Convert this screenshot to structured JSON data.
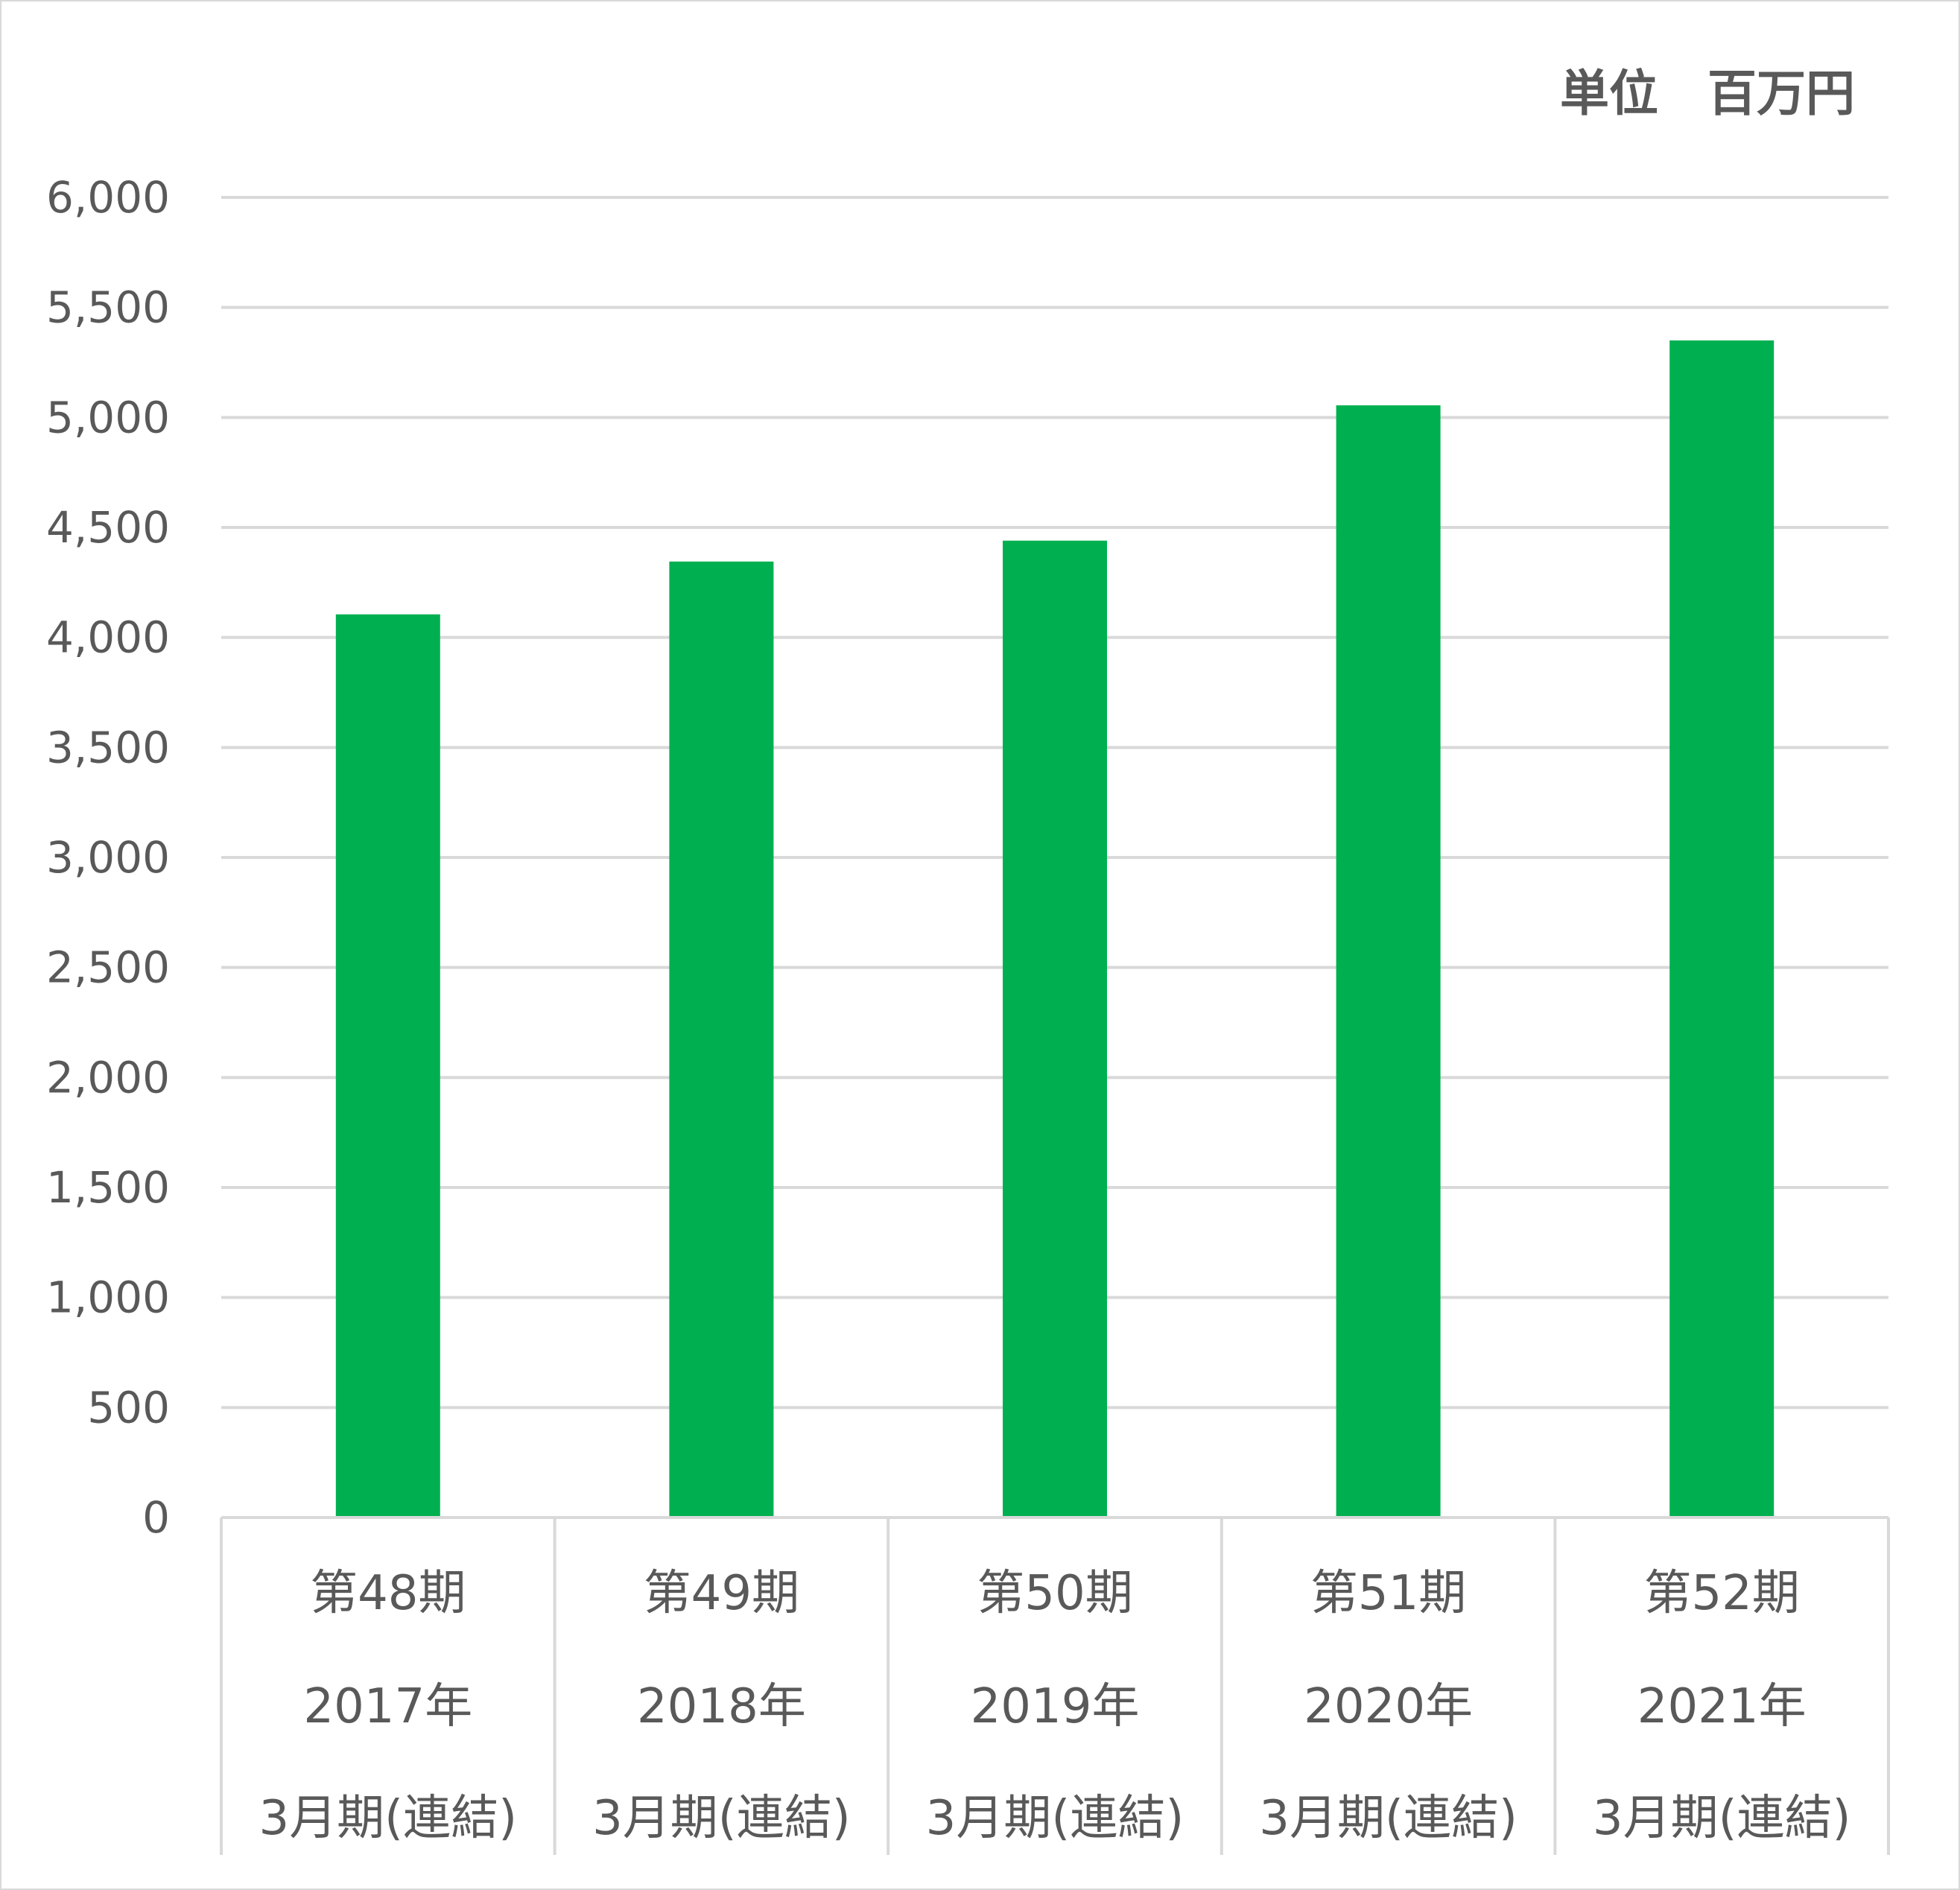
{
  "unit_label": "単位　百万円",
  "chart_data": {
    "type": "bar",
    "categories": [
      [
        "第48期",
        "2017年",
        "3月期(連結)"
      ],
      [
        "第49期",
        "2018年",
        "3月期(連結)"
      ],
      [
        "第50期",
        "2019年",
        "3月期(連結)"
      ],
      [
        "第51期",
        "2020年",
        "3月期(連結)"
      ],
      [
        "第52期",
        "2021年",
        "3月期(連結)"
      ]
    ],
    "values": [
      4105,
      4345,
      4440,
      5055,
      5350
    ],
    "ylim": [
      0,
      6000
    ],
    "yticks": [
      0,
      500,
      1000,
      1500,
      2000,
      2500,
      3000,
      3500,
      4000,
      4500,
      5000,
      5500,
      6000
    ],
    "ytick_labels": [
      "0",
      "500",
      "1,000",
      "1,500",
      "2,000",
      "2,500",
      "3,000",
      "3,500",
      "4,000",
      "4,500",
      "5,000",
      "5,500",
      "6,000"
    ],
    "grid": true,
    "colors": {
      "bar": "#00b050",
      "grid": "#d9d9d9",
      "text": "#595959"
    }
  }
}
